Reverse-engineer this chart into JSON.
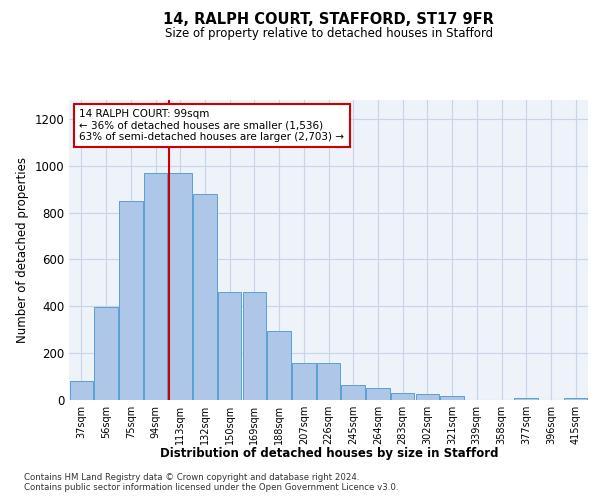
{
  "title1": "14, RALPH COURT, STAFFORD, ST17 9FR",
  "title2": "Size of property relative to detached houses in Stafford",
  "xlabel": "Distribution of detached houses by size in Stafford",
  "ylabel": "Number of detached properties",
  "footer": "Contains HM Land Registry data © Crown copyright and database right 2024.\nContains public sector information licensed under the Open Government Licence v3.0.",
  "categories": [
    "37sqm",
    "56sqm",
    "75sqm",
    "94sqm",
    "113sqm",
    "132sqm",
    "150sqm",
    "169sqm",
    "188sqm",
    "207sqm",
    "226sqm",
    "245sqm",
    "264sqm",
    "283sqm",
    "302sqm",
    "321sqm",
    "339sqm",
    "358sqm",
    "377sqm",
    "396sqm",
    "415sqm"
  ],
  "values": [
    80,
    395,
    848,
    970,
    970,
    880,
    460,
    460,
    295,
    160,
    160,
    65,
    50,
    30,
    25,
    15,
    0,
    0,
    10,
    0,
    10
  ],
  "bar_color": "#aec6e8",
  "bar_edge_color": "#5a9fd4",
  "vline_x_index": 3.55,
  "annotation_text": "14 RALPH COURT: 99sqm\n← 36% of detached houses are smaller (1,536)\n63% of semi-detached houses are larger (2,703) →",
  "vline_color": "#cc0000",
  "annotation_box_color": "#ffffff",
  "annotation_box_edge_color": "#cc0000",
  "grid_color": "#c8d4e8",
  "ylim": [
    0,
    1280
  ],
  "yticks": [
    0,
    200,
    400,
    600,
    800,
    1000,
    1200
  ],
  "background_color": "#eef2f9",
  "fig_background": "#ffffff"
}
